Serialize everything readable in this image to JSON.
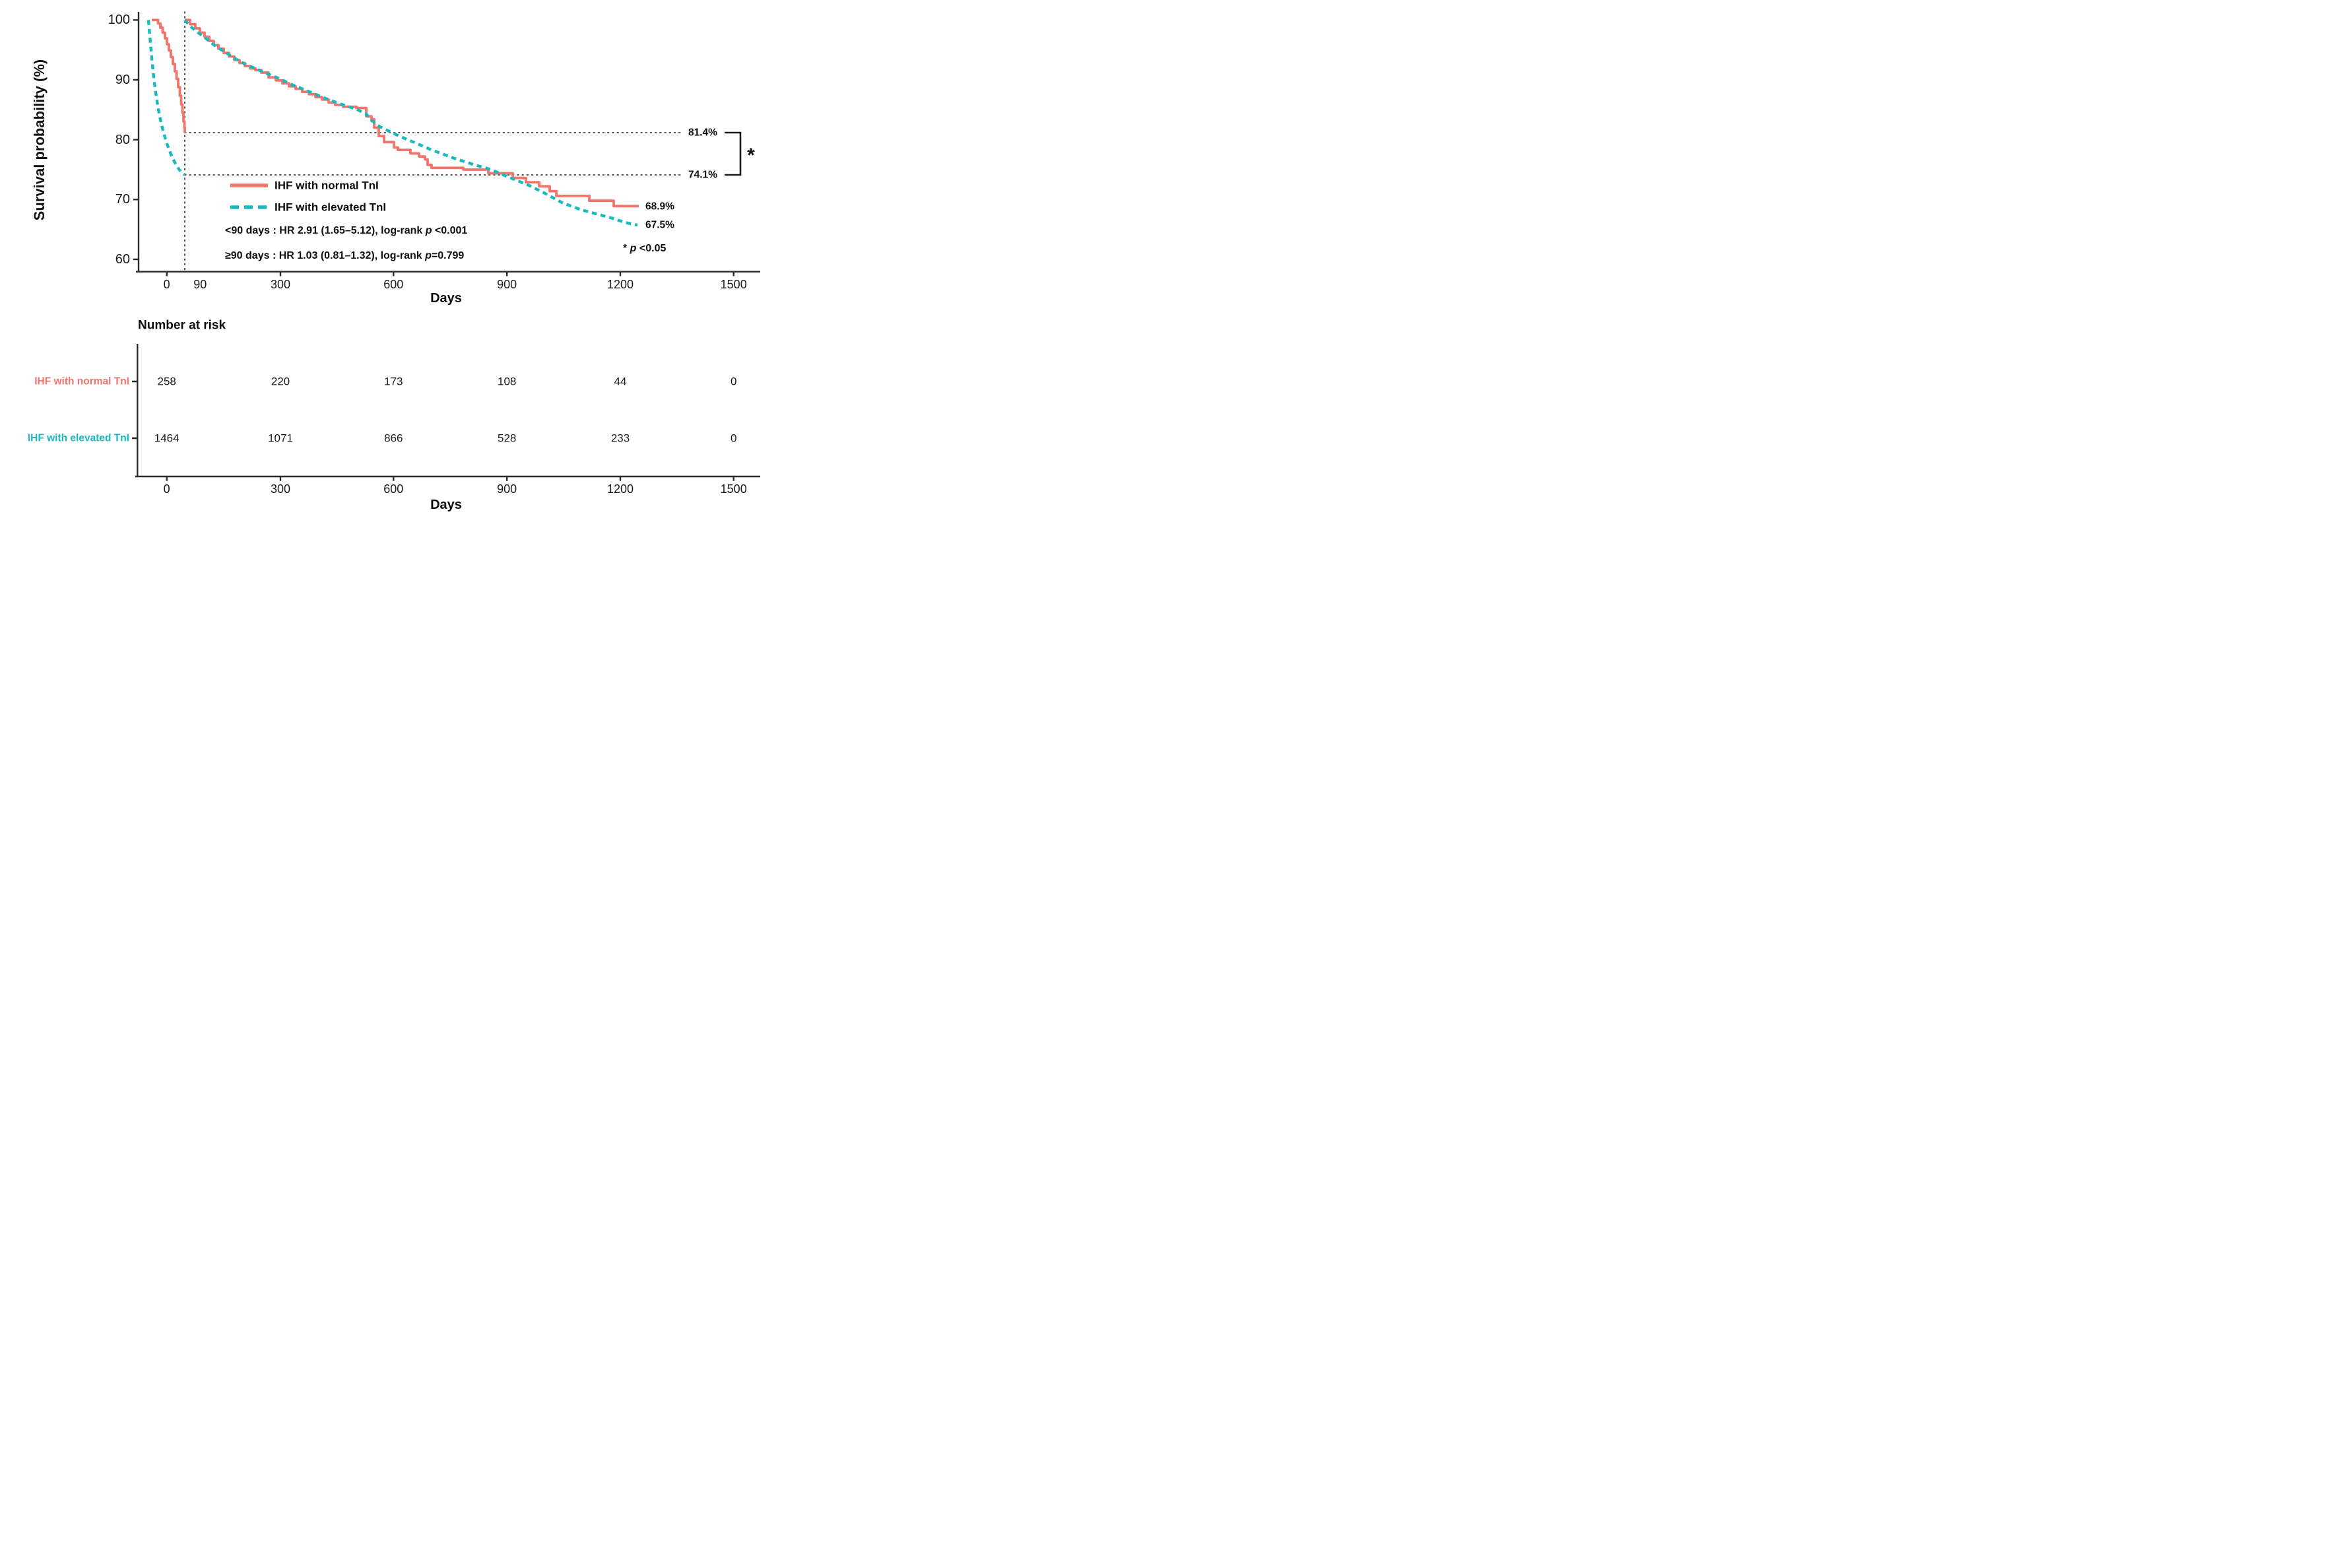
{
  "colors": {
    "normal_tni_red": "#F2746A",
    "elevated_tni_teal": "#17BABE",
    "axis": "#2B2B2B",
    "dotted_reference": "#3A3A3A",
    "text": "#0F0F0F"
  },
  "top_chart": {
    "y_axis": {
      "title": "Survival probability (%)",
      "ticks": [
        "100",
        "90",
        "80",
        "70",
        "60"
      ]
    },
    "x_axis": {
      "title": "Days",
      "tick_labels": [
        "0",
        "90",
        "300",
        "600",
        "900",
        "1200",
        "1500"
      ]
    },
    "legend": {
      "normal": "IHF with normal TnI",
      "elevated": "IHF with elevated TnI"
    },
    "annotations": {
      "lt90_prefix": "<90 days : HR 2.91 (1.65–5.12), log-rank ",
      "lt90_p": "p",
      "lt90_suffix": " <0.001",
      "ge90_prefix": "≥90 days : HR 1.03 (0.81–1.32), log-rank ",
      "ge90_p": "p",
      "ge90_suffix": "=0.799",
      "sig_prefix": "* ",
      "sig_p": "p",
      "sig_suffix": " <0.05",
      "bracket_star": "*"
    },
    "value_labels": {
      "normal_90d": "81.4%",
      "elevated_90d": "74.1%",
      "normal_end": "68.9%",
      "elevated_end": "67.5%"
    }
  },
  "risk_table": {
    "title": "Number at risk",
    "x_axis": {
      "title": "Days",
      "tick_labels": [
        "0",
        "300",
        "600",
        "900",
        "1200",
        "1500"
      ]
    },
    "rows": [
      {
        "label": "IHF with normal TnI",
        "values": [
          "258",
          "220",
          "173",
          "108",
          "44",
          "0"
        ]
      },
      {
        "label": "IHF with elevated TnI",
        "values": [
          "1464",
          "1071",
          "866",
          "528",
          "233",
          "0"
        ]
      }
    ]
  },
  "chart_data": {
    "type": "line",
    "subtype": "kaplan-meier-landmark",
    "title": "",
    "xlabel": "Days",
    "ylabel": "Survival probability (%)",
    "xlim": [
      0,
      1500
    ],
    "ylim": [
      60,
      100
    ],
    "x_ticks": [
      0,
      90,
      300,
      600,
      900,
      1200,
      1500
    ],
    "y_ticks": [
      60,
      70,
      80,
      90,
      100
    ],
    "grid": false,
    "legend_position": "inside-center-left",
    "landmark_day": 90,
    "series": [
      {
        "name": "IHF with normal TnI",
        "color": "#F2746A",
        "line_style": "solid",
        "survival_at_90d_pct": 81.4,
        "survival_at_end_pct": 68.9,
        "phase1_day_pct": [
          [
            0,
            100
          ],
          [
            10,
            99
          ],
          [
            20,
            97
          ],
          [
            30,
            95
          ],
          [
            40,
            93
          ],
          [
            50,
            91
          ],
          [
            60,
            88.5
          ],
          [
            70,
            86
          ],
          [
            80,
            83.5
          ],
          [
            90,
            81.4
          ]
        ],
        "phase2_rebased_day_pct": [
          [
            90,
            100
          ],
          [
            150,
            97
          ],
          [
            200,
            95
          ],
          [
            300,
            92
          ],
          [
            400,
            89.5
          ],
          [
            500,
            87
          ],
          [
            550,
            85.5
          ],
          [
            600,
            83
          ],
          [
            650,
            80
          ],
          [
            700,
            78
          ],
          [
            750,
            76.5
          ],
          [
            800,
            75.5
          ],
          [
            900,
            75
          ],
          [
            950,
            74
          ],
          [
            1000,
            73
          ],
          [
            1050,
            72
          ],
          [
            1100,
            71
          ],
          [
            1150,
            70.5
          ],
          [
            1200,
            69.5
          ],
          [
            1250,
            68.9
          ]
        ]
      },
      {
        "name": "IHF with elevated TnI",
        "color": "#17BABE",
        "line_style": "dashed",
        "survival_at_90d_pct": 74.1,
        "survival_at_end_pct": 67.5,
        "phase1_day_pct": [
          [
            0,
            100
          ],
          [
            5,
            97
          ],
          [
            15,
            93
          ],
          [
            25,
            90
          ],
          [
            35,
            87
          ],
          [
            45,
            84.5
          ],
          [
            55,
            82
          ],
          [
            65,
            79.5
          ],
          [
            75,
            77.5
          ],
          [
            85,
            75.5
          ],
          [
            90,
            74.1
          ]
        ],
        "phase2_rebased_day_pct": [
          [
            90,
            100
          ],
          [
            150,
            97.5
          ],
          [
            200,
            95.5
          ],
          [
            300,
            92.5
          ],
          [
            400,
            90
          ],
          [
            500,
            87.5
          ],
          [
            600,
            84
          ],
          [
            700,
            81
          ],
          [
            800,
            78
          ],
          [
            900,
            75.5
          ],
          [
            1000,
            73
          ],
          [
            1100,
            71
          ],
          [
            1150,
            70
          ],
          [
            1200,
            68.5
          ],
          [
            1250,
            67.5
          ]
        ]
      }
    ],
    "hazard_ratios": [
      {
        "period": "<90 days",
        "hr": 2.91,
        "ci_low": 1.65,
        "ci_high": 5.12,
        "log_rank_p": "<0.001"
      },
      {
        "period": "≥90 days",
        "hr": 1.03,
        "ci_low": 0.81,
        "ci_high": 1.32,
        "log_rank_p": "=0.799"
      }
    ],
    "number_at_risk": {
      "days": [
        0,
        300,
        600,
        900,
        1200,
        1500
      ],
      "IHF with normal TnI": [
        258,
        220,
        173,
        108,
        44,
        0
      ],
      "IHF with elevated TnI": [
        1464,
        1071,
        866,
        528,
        233,
        0
      ]
    },
    "render_points": {
      "red_phase1": [
        [
          230,
          30.3
        ],
        [
          239.5,
          30.3
        ],
        [
          239.5,
          35.5
        ],
        [
          243,
          35.5
        ],
        [
          243,
          42
        ],
        [
          246.5,
          42
        ],
        [
          246.5,
          49.5
        ],
        [
          250,
          49.5
        ],
        [
          250,
          58
        ],
        [
          253,
          58
        ],
        [
          253,
          67
        ],
        [
          256,
          67
        ],
        [
          256,
          76.5
        ],
        [
          259,
          76.5
        ],
        [
          259,
          86.5
        ],
        [
          262,
          86.5
        ],
        [
          262,
          97
        ],
        [
          265,
          97
        ],
        [
          265,
          108
        ],
        [
          267.5,
          108
        ],
        [
          267.5,
          119.5
        ],
        [
          270,
          119.5
        ],
        [
          270,
          132
        ],
        [
          272.5,
          132
        ],
        [
          272.5,
          145
        ],
        [
          274.5,
          145
        ],
        [
          274.5,
          158
        ],
        [
          276.5,
          158
        ],
        [
          276.5,
          171
        ],
        [
          278,
          171
        ],
        [
          278,
          184
        ],
        [
          279.5,
          184
        ],
        [
          279.5,
          193
        ],
        [
          280,
          193
        ],
        [
          280,
          201
        ]
      ],
      "teal_phase1": [
        [
          225,
          30.3
        ],
        [
          226.5,
          48
        ],
        [
          228,
          66
        ],
        [
          230,
          88
        ],
        [
          232,
          108
        ],
        [
          234,
          126
        ],
        [
          236.5,
          144
        ],
        [
          239,
          160
        ],
        [
          242,
          176
        ],
        [
          245,
          190
        ],
        [
          248.5,
          203
        ],
        [
          252,
          215
        ],
        [
          256,
          226
        ],
        [
          260,
          236
        ],
        [
          264,
          244.5
        ],
        [
          268,
          251.5
        ],
        [
          272,
          257.5
        ],
        [
          276,
          262
        ],
        [
          280,
          265
        ]
      ],
      "red_phase2": [
        [
          280,
          30.3
        ],
        [
          288,
          30.3
        ],
        [
          288,
          36.7
        ],
        [
          296,
          36.7
        ],
        [
          296,
          43
        ],
        [
          303,
          43
        ],
        [
          303,
          49.4
        ],
        [
          310,
          49.4
        ],
        [
          310,
          55.7
        ],
        [
          317,
          55.7
        ],
        [
          317,
          62
        ],
        [
          324,
          62
        ],
        [
          324,
          68.4
        ],
        [
          331,
          68.4
        ],
        [
          331,
          73.8
        ],
        [
          339,
          73.8
        ],
        [
          339,
          80.2
        ],
        [
          347,
          80.2
        ],
        [
          347,
          85.6
        ],
        [
          355,
          85.6
        ],
        [
          355,
          91
        ],
        [
          363,
          91
        ],
        [
          363,
          95.5
        ],
        [
          371,
          95.5
        ],
        [
          371,
          100.1
        ],
        [
          379,
          100.1
        ],
        [
          379,
          103.7
        ],
        [
          387,
          103.7
        ],
        [
          387,
          106.4
        ],
        [
          396,
          106.4
        ],
        [
          396,
          110
        ],
        [
          407,
          110
        ],
        [
          407,
          117.3
        ],
        [
          418,
          117.3
        ],
        [
          418,
          121.8
        ],
        [
          428,
          121.8
        ],
        [
          428,
          126.4
        ],
        [
          438,
          126.4
        ],
        [
          438,
          130.9
        ],
        [
          448,
          130.9
        ],
        [
          448,
          134.5
        ],
        [
          458,
          134.5
        ],
        [
          458,
          139.1
        ],
        [
          468,
          139.1
        ],
        [
          468,
          142.7
        ],
        [
          478,
          142.7
        ],
        [
          478,
          147.2
        ],
        [
          488,
          147.2
        ],
        [
          488,
          150.9
        ],
        [
          498,
          150.9
        ],
        [
          498,
          155.4
        ],
        [
          508,
          155.4
        ],
        [
          508,
          159
        ],
        [
          520,
          159
        ],
        [
          520,
          161.8
        ],
        [
          540,
          161.8
        ],
        [
          540,
          163.6
        ],
        [
          555,
          163.6
        ],
        [
          555,
          176.3
        ],
        [
          563,
          176.3
        ],
        [
          563,
          180.8
        ],
        [
          567,
          180.8
        ],
        [
          567,
          193.5
        ],
        [
          574,
          193.5
        ],
        [
          574,
          206.2
        ],
        [
          582,
          206.2
        ],
        [
          582,
          215.3
        ],
        [
          597,
          215.3
        ],
        [
          597,
          223.5
        ],
        [
          603,
          223.5
        ],
        [
          603,
          227.1
        ],
        [
          622,
          227.1
        ],
        [
          622,
          232.5
        ],
        [
          635,
          232.5
        ],
        [
          635,
          237.1
        ],
        [
          644,
          237.1
        ],
        [
          644,
          241.6
        ],
        [
          648,
          241.6
        ],
        [
          648,
          249.8
        ],
        [
          654,
          249.8
        ],
        [
          654,
          254.3
        ],
        [
          702,
          254.3
        ],
        [
          702,
          257
        ],
        [
          740,
          257
        ],
        [
          740,
          262.5
        ],
        [
          777,
          262.5
        ],
        [
          777,
          269.7
        ],
        [
          797,
          269.7
        ],
        [
          797,
          276.1
        ],
        [
          817,
          276.1
        ],
        [
          817,
          282.4
        ],
        [
          833,
          282.4
        ],
        [
          833,
          289.7
        ],
        [
          843,
          289.7
        ],
        [
          843,
          296.9
        ],
        [
          893,
          296.9
        ],
        [
          893,
          304.2
        ],
        [
          930,
          304.2
        ],
        [
          930,
          312.3
        ],
        [
          968,
          312.3
        ]
      ],
      "teal_phase2": [
        [
          280,
          30.3
        ],
        [
          290,
          41.2
        ],
        [
          300,
          49.4
        ],
        [
          310,
          56.6
        ],
        [
          320,
          64.8
        ],
        [
          330,
          72
        ],
        [
          340,
          78.4
        ],
        [
          350,
          84.7
        ],
        [
          360,
          91
        ],
        [
          370,
          96.4
        ],
        [
          380,
          100.9
        ],
        [
          395,
          107.3
        ],
        [
          410,
          113.6
        ],
        [
          425,
          119.9
        ],
        [
          440,
          127.3
        ],
        [
          460,
          135.4
        ],
        [
          480,
          143.6
        ],
        [
          500,
          151.8
        ],
        [
          520,
          159
        ],
        [
          540,
          165.4
        ],
        [
          555,
          172.6
        ],
        [
          563,
          182.6
        ],
        [
          575,
          191.7
        ],
        [
          590,
          199
        ],
        [
          605,
          206.2
        ],
        [
          620,
          212.6
        ],
        [
          637,
          219.8
        ],
        [
          654,
          227.1
        ],
        [
          671,
          233.4
        ],
        [
          688,
          239.8
        ],
        [
          705,
          245.2
        ],
        [
          722,
          250.7
        ],
        [
          736,
          254.3
        ],
        [
          753,
          260.7
        ],
        [
          763,
          265.2
        ],
        [
          783,
          273.4
        ],
        [
          803,
          281.5
        ],
        [
          823,
          291.5
        ],
        [
          843,
          302.3
        ],
        [
          853,
          307.7
        ],
        [
          880,
          317.7
        ],
        [
          917,
          327.7
        ],
        [
          933,
          332.2
        ],
        [
          945,
          336.5
        ],
        [
          958,
          339.5
        ],
        [
          966,
          341
        ]
      ]
    }
  }
}
